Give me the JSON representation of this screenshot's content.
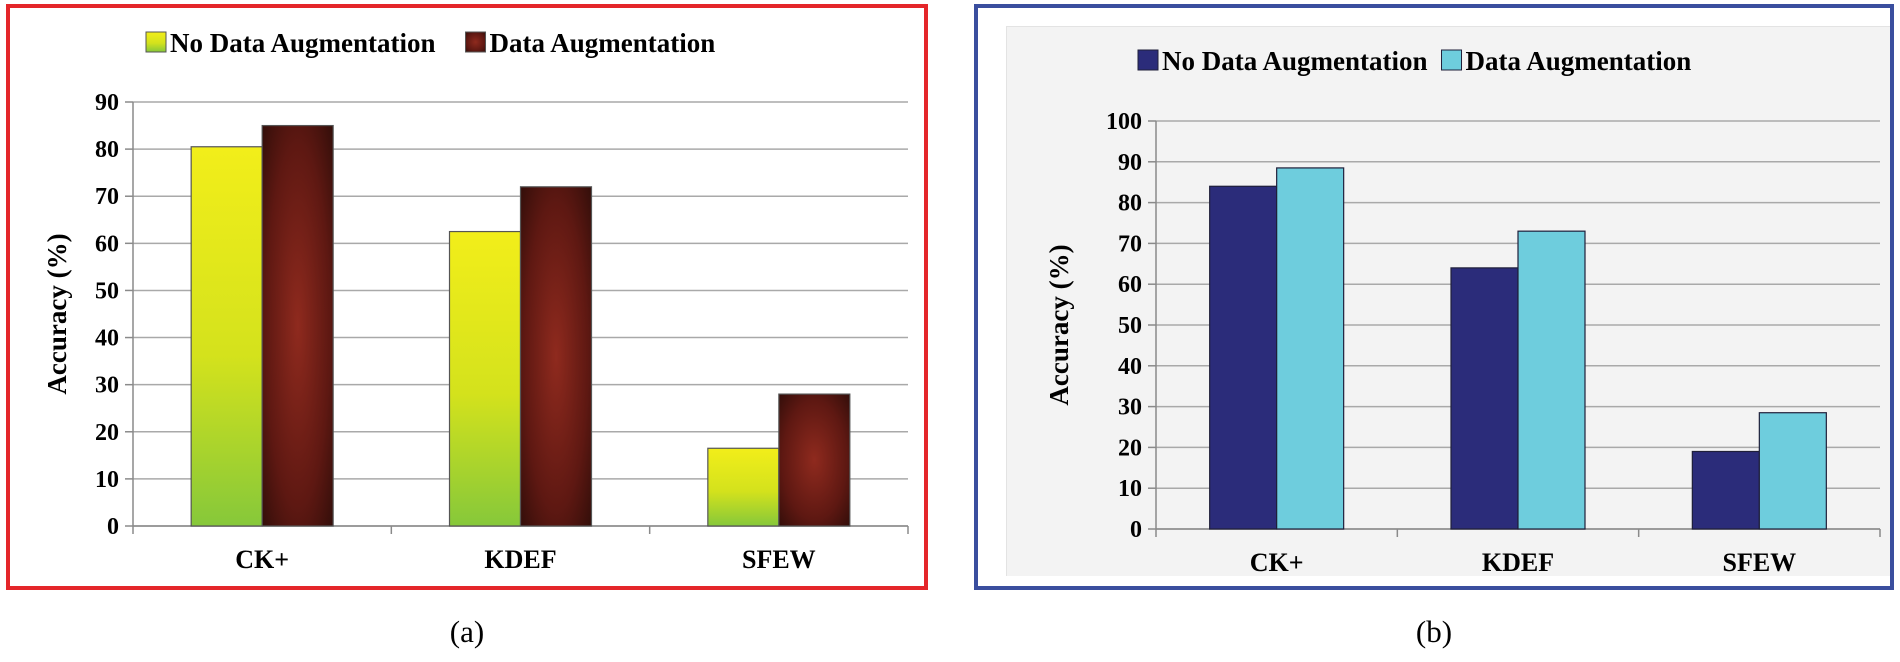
{
  "captions": {
    "a": "(a)",
    "b": "(b)"
  },
  "chart_data": [
    {
      "type": "bar",
      "categories": [
        "CK+",
        "KDEF",
        "SFEW"
      ],
      "series": [
        {
          "name": "No Data Augmentation",
          "values": [
            80.5,
            62.5,
            16.5
          ],
          "color": "#d4e21c"
        },
        {
          "name": "Data Augmentation",
          "values": [
            85,
            72,
            28
          ],
          "color": "#6b1a14"
        }
      ],
      "ylabel": "Accuracy (%)",
      "xlabel": "",
      "ylim": [
        0,
        90
      ],
      "yticks": [
        0,
        10,
        20,
        30,
        40,
        50,
        60,
        70,
        80,
        90
      ],
      "grid": true,
      "legend": "top",
      "border_color": "#e4262a"
    },
    {
      "type": "bar",
      "categories": [
        "CK+",
        "KDEF",
        "SFEW"
      ],
      "series": [
        {
          "name": "No Data Augmentation",
          "values": [
            84,
            64,
            19
          ],
          "color": "#2b2c7a"
        },
        {
          "name": "Data Augmentation",
          "values": [
            88.5,
            73,
            28.5
          ],
          "color": "#6ecddd"
        }
      ],
      "ylabel": "Accuracy (%)",
      "xlabel": "",
      "ylim": [
        0,
        100
      ],
      "yticks": [
        0,
        10,
        20,
        30,
        40,
        50,
        60,
        70,
        80,
        90,
        100
      ],
      "grid": true,
      "legend": "top",
      "border_color": "#3a4e9e"
    }
  ]
}
